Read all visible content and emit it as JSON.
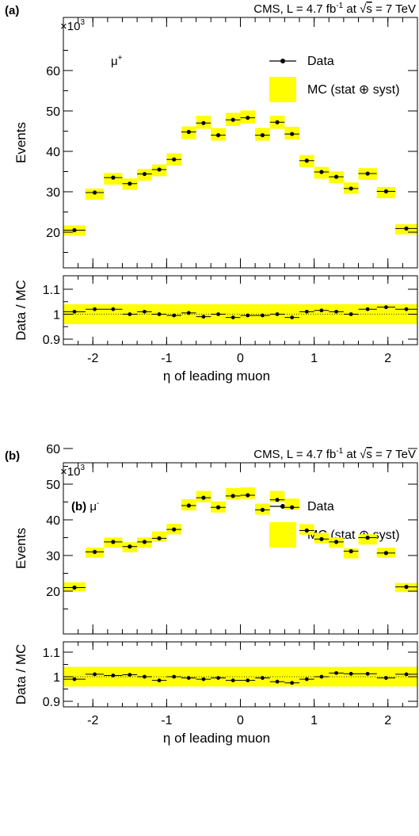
{
  "figure": {
    "width": 529,
    "height": 1055
  },
  "chart_data": [
    {
      "type": "bar",
      "panel_label": "(a)",
      "experiment_label": "CMS,  L = 4.7 fb",
      "lumi_sup": "-1",
      "lumi_tail": " at ",
      "sqrt_s": "s",
      "energy_label": " = 7 TeV",
      "multiplier": "×10",
      "multiplier_exp": "3",
      "particle_label": "μ",
      "particle_sup": "+",
      "inner_label": "",
      "legend": {
        "data": "Data",
        "mc": "MC (stat ⊕ syst)"
      },
      "ylabel": "Events",
      "ratio_ylabel": "Data / MC",
      "xlabel": "η of leading muon",
      "xlim": [
        -2.4,
        2.4
      ],
      "ylim": [
        13,
        68
      ],
      "ratio_ylim": [
        0.88,
        1.14
      ],
      "x_ticks": [
        "-2",
        "-1",
        "0",
        "1",
        "2"
      ],
      "y_ticks": [
        "20",
        "30",
        "40",
        "50",
        "60"
      ],
      "ratio_ticks": [
        "0.9",
        "1",
        "1.1"
      ],
      "colors": {
        "band": "#ffff00",
        "marker": "#000000"
      },
      "bin_edges": [
        -2.4,
        -2.1,
        -1.85,
        -1.6,
        -1.4,
        -1.2,
        -1.0,
        -0.8,
        -0.6,
        -0.4,
        -0.2,
        0.0,
        0.2,
        0.4,
        0.6,
        0.8,
        1.0,
        1.2,
        1.4,
        1.6,
        1.85,
        2.1,
        2.4
      ],
      "series": [
        {
          "name": "Data",
          "values": [
            20.5,
            29.8,
            33.5,
            32.0,
            34.4,
            35.5,
            38.0,
            44.8,
            47.0,
            44.0,
            47.8,
            48.3,
            44.0,
            47.2,
            44.3,
            37.7,
            34.9,
            33.7,
            30.8,
            34.5,
            30.1,
            20.9
          ]
        },
        {
          "name": "MC (stat ⊕ syst)",
          "values": [
            20.4,
            29.4,
            33.2,
            31.9,
            34.2,
            35.3,
            38.0,
            44.6,
            47.2,
            44.2,
            47.9,
            48.5,
            44.2,
            47.2,
            44.5,
            37.6,
            34.7,
            33.6,
            30.9,
            34.4,
            29.8,
            20.7
          ]
        }
      ],
      "ratio": [
        1.01,
        1.02,
        1.02,
        1.0,
        1.01,
        1.0,
        0.995,
        1.005,
        0.99,
        1.0,
        0.987,
        0.995,
        0.995,
        1.0,
        0.987,
        1.01,
        1.015,
        1.01,
        1.0,
        1.02,
        1.028,
        1.02
      ],
      "ratio_band": 0.04
    },
    {
      "type": "bar",
      "panel_label": "(b)",
      "experiment_label": "CMS,  L = 4.7 fb",
      "lumi_sup": "-1",
      "lumi_tail": " at ",
      "sqrt_s": "s",
      "energy_label": " = 7 TeV",
      "multiplier": "×10",
      "multiplier_exp": "3",
      "particle_label": "μ",
      "particle_sup": "-",
      "inner_label": "(b)",
      "legend": {
        "data": "Data",
        "mc": "MC (stat ⊕ syst)"
      },
      "ylabel": "Events",
      "ratio_ylabel": "Data / MC",
      "xlabel": "η of leading muon",
      "xlim": [
        -2.4,
        2.4
      ],
      "ylim": [
        13,
        68
      ],
      "ratio_ylim": [
        0.88,
        1.14
      ],
      "x_ticks": [
        "-2",
        "-1",
        "0",
        "1",
        "2"
      ],
      "y_ticks": [
        "20",
        "30",
        "40",
        "50",
        "60"
      ],
      "ratio_ticks": [
        "0.9",
        "1",
        "1.1"
      ],
      "colors": {
        "band": "#ffff00",
        "marker": "#000000"
      },
      "bin_edges": [
        -2.4,
        -2.1,
        -1.85,
        -1.6,
        -1.4,
        -1.2,
        -1.0,
        -0.8,
        -0.6,
        -0.4,
        -0.2,
        0.0,
        0.2,
        0.4,
        0.6,
        0.8,
        1.0,
        1.2,
        1.4,
        1.6,
        1.85,
        2.1,
        2.4
      ],
      "series": [
        {
          "name": "Data",
          "values": [
            21.0,
            31.0,
            33.8,
            32.5,
            33.8,
            34.8,
            37.3,
            44.0,
            46.2,
            43.5,
            46.7,
            46.9,
            42.8,
            45.6,
            43.5,
            37.0,
            34.6,
            33.8,
            31.2,
            35.0,
            30.7,
            21.2
          ]
        },
        {
          "name": "MC (stat ⊕ syst)",
          "values": [
            21.2,
            30.8,
            33.6,
            32.3,
            33.6,
            35.3,
            37.4,
            44.2,
            46.5,
            43.6,
            47.3,
            47.5,
            43.0,
            46.5,
            44.4,
            37.3,
            34.9,
            33.6,
            30.6,
            34.5,
            30.8,
            21.0
          ]
        }
      ],
      "ratio": [
        0.99,
        1.01,
        1.005,
        1.008,
        1.0,
        0.985,
        1.0,
        0.995,
        0.99,
        0.995,
        0.985,
        0.985,
        0.995,
        0.98,
        0.975,
        0.99,
        1.0,
        1.015,
        1.012,
        1.012,
        0.995,
        1.01
      ],
      "ratio_band": 0.04
    }
  ]
}
